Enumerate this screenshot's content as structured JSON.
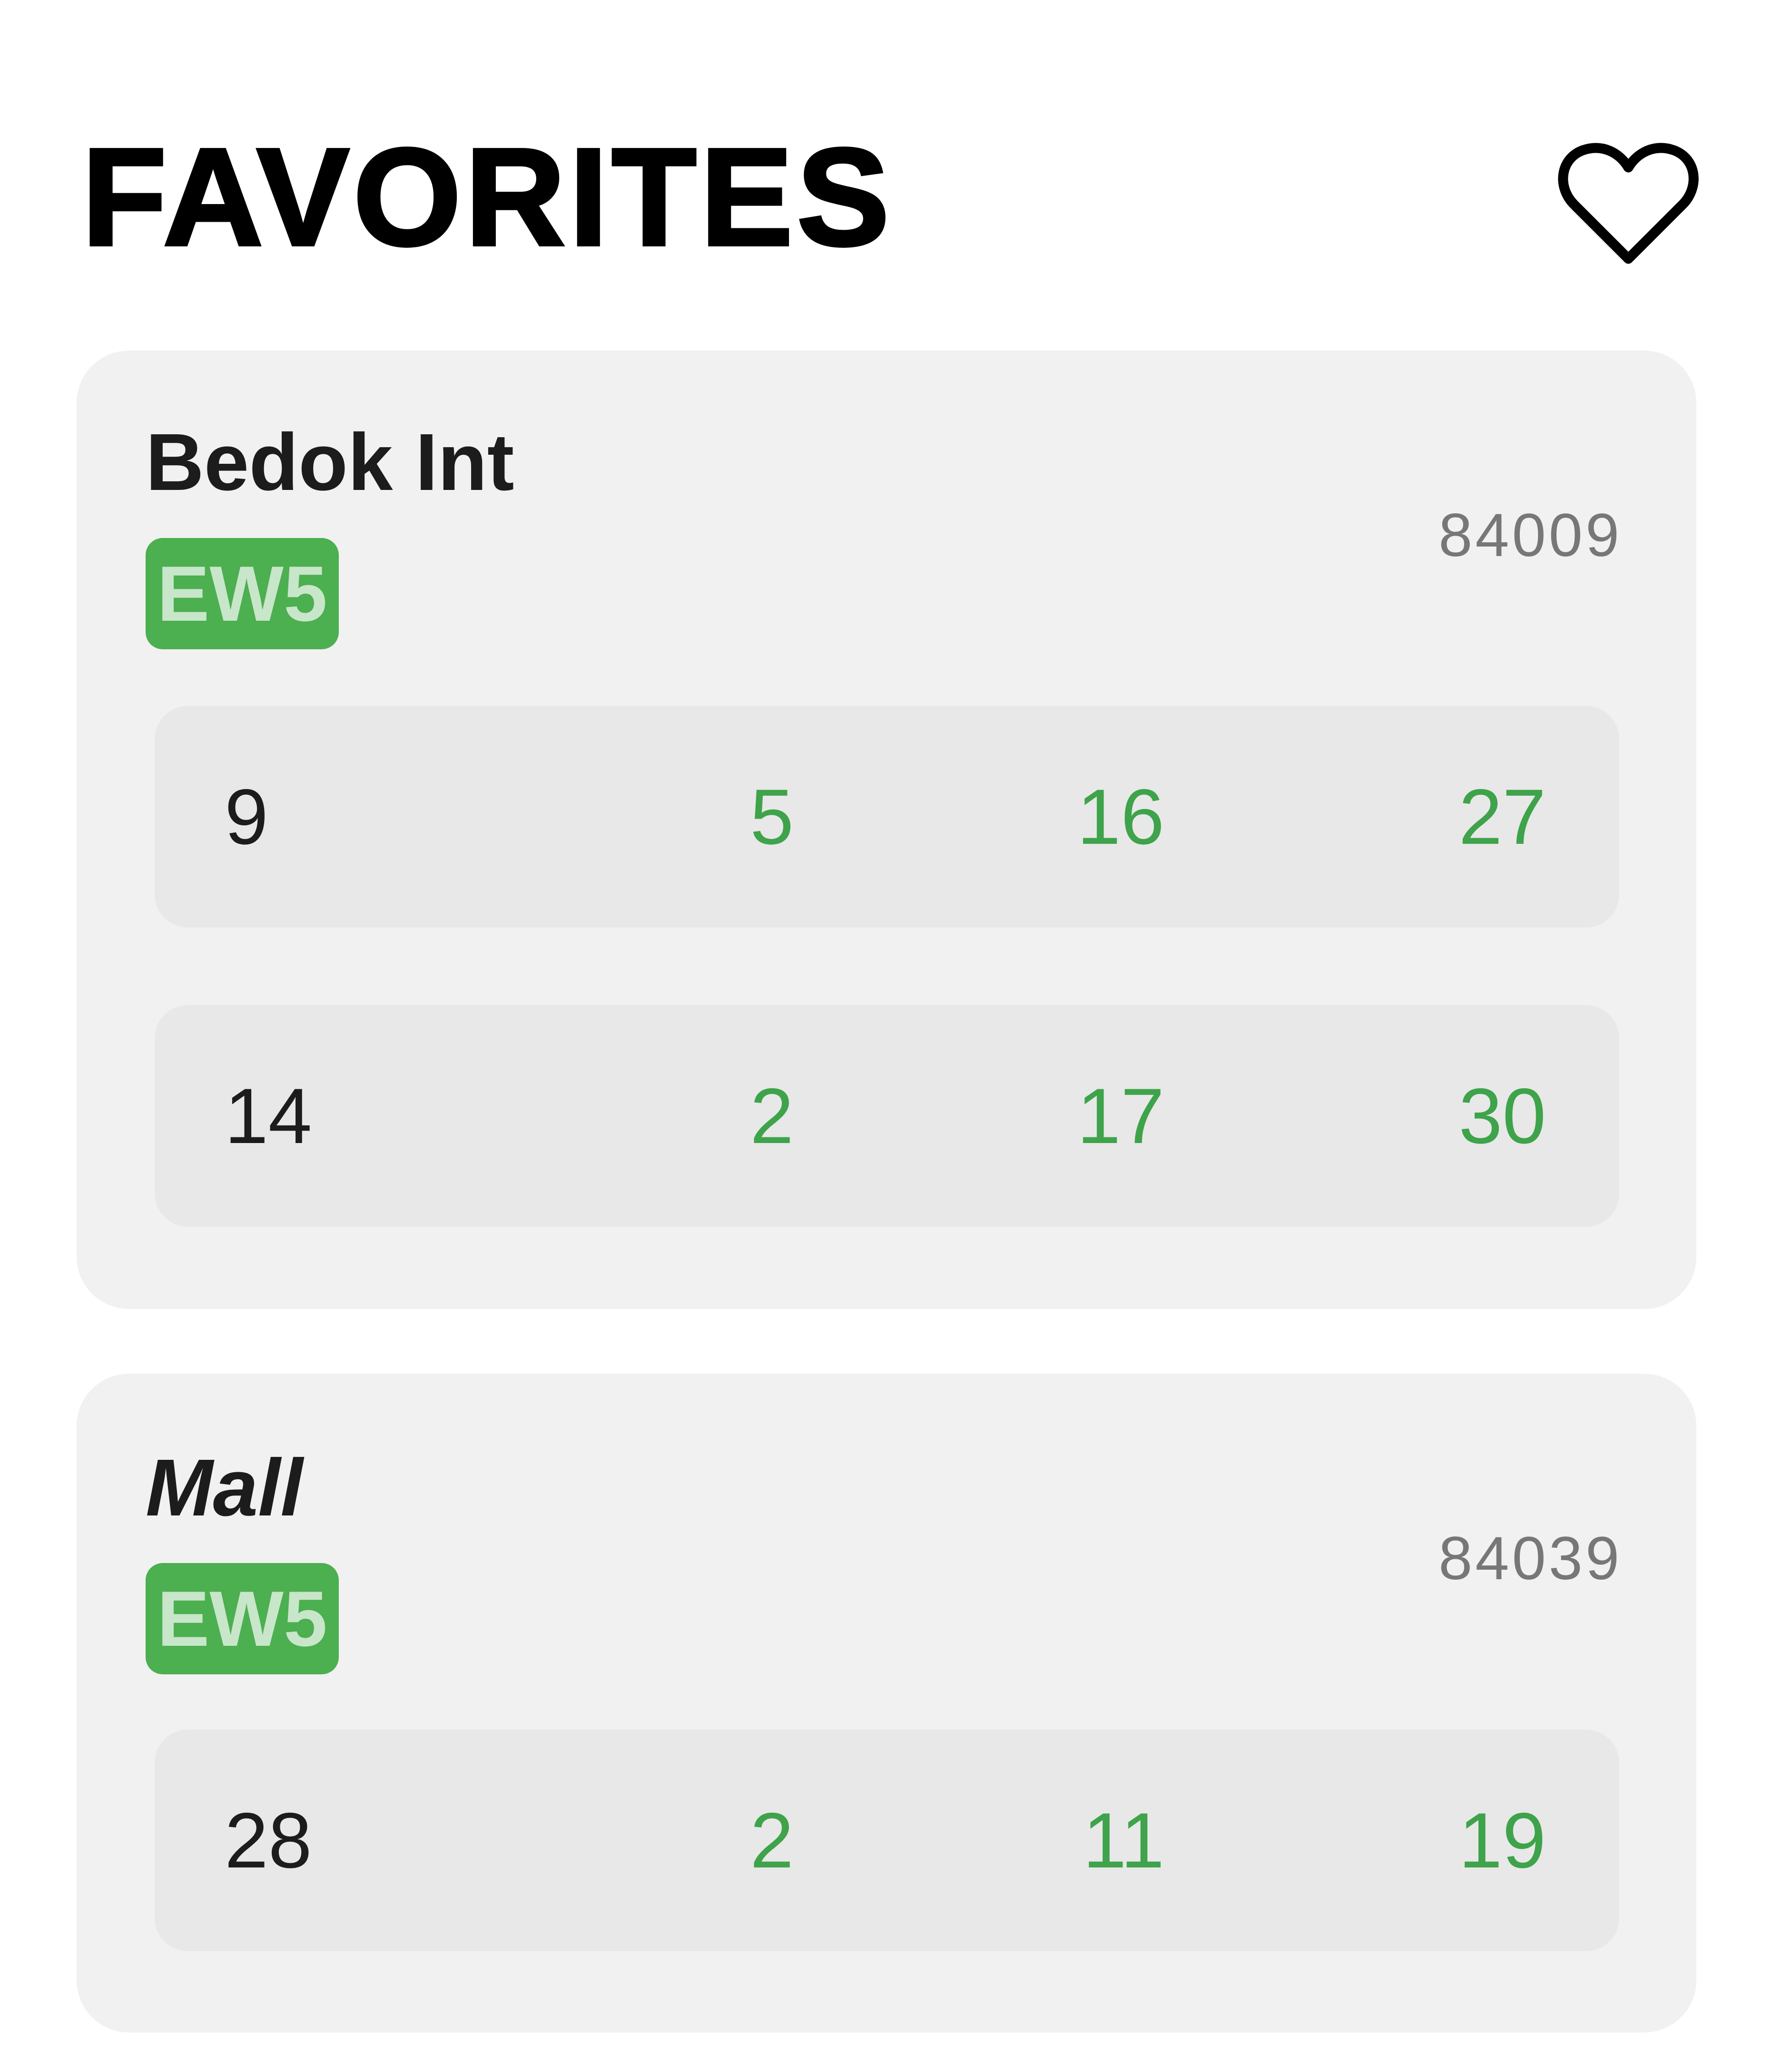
{
  "header": {
    "title": "FAVORITES",
    "icon": "heart-outline-icon"
  },
  "colors": {
    "badge_bg": "#4caf50",
    "badge_text": "#c8e6c9",
    "arrival_text": "#3ea34a",
    "card_bg": "#f1f1f1",
    "row_bg": "#e8e8e8"
  },
  "stops": [
    {
      "name": "Bedok Int",
      "badge": "EW5",
      "code": "84009",
      "services": [
        {
          "number": "9",
          "arrivals": [
            "5",
            "16",
            "27"
          ]
        },
        {
          "number": "14",
          "arrivals": [
            "2",
            "17",
            "30"
          ]
        }
      ]
    },
    {
      "name": "Mall",
      "badge": "EW5",
      "code": "84039",
      "services": [
        {
          "number": "28",
          "arrivals": [
            "2",
            "11",
            "19"
          ]
        }
      ]
    }
  ]
}
